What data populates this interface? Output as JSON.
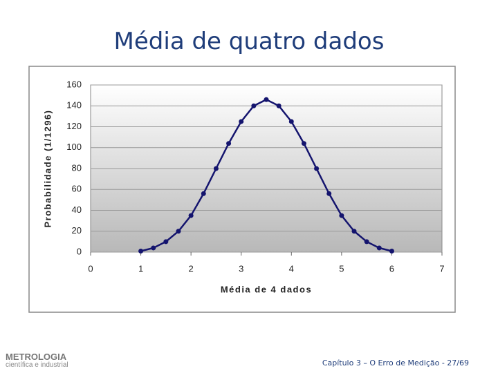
{
  "chart_data": {
    "type": "line",
    "title": "Média de quatro dados",
    "x_label": "Média de 4 dados",
    "y_label": "Probabilidade (1/1296)",
    "x": [
      1,
      1.25,
      1.5,
      1.75,
      2,
      2.25,
      2.5,
      2.75,
      3,
      3.25,
      3.5,
      3.75,
      4,
      4.25,
      4.5,
      4.75,
      5,
      5.25,
      5.5,
      5.75,
      6
    ],
    "values": [
      1,
      4,
      10,
      20,
      35,
      56,
      80,
      104,
      125,
      140,
      146,
      140,
      125,
      104,
      80,
      56,
      35,
      20,
      10,
      4,
      1
    ],
    "color": "#14146e",
    "xlim": [
      0,
      7
    ],
    "xticks": [
      0,
      1,
      2,
      3,
      4,
      5,
      6,
      7
    ],
    "ylim": [
      0,
      160
    ],
    "yticks": [
      0,
      20,
      40,
      60,
      80,
      100,
      120,
      140,
      160
    ],
    "grid": true
  },
  "footer": "Capítulo 3 – O Erro de Medição - 27/69",
  "logo": {
    "name": "METROLOGIA",
    "tagline": "científica e industrial"
  }
}
